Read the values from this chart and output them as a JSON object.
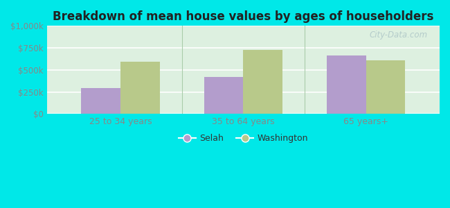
{
  "title": "Breakdown of mean house values by ages of householders",
  "categories": [
    "25 to 34 years",
    "35 to 64 years",
    "65 years+"
  ],
  "selah_values": [
    290000,
    420000,
    660000
  ],
  "washington_values": [
    590000,
    730000,
    610000
  ],
  "selah_color": "#b39dcc",
  "washington_color": "#b8c98a",
  "background_outer": "#00e8e8",
  "background_plot_top": "#e0f0e8",
  "background_plot_bottom": "#c8ead8",
  "ylim": [
    0,
    1000000
  ],
  "yticks": [
    0,
    250000,
    500000,
    750000,
    1000000
  ],
  "ytick_labels": [
    "$0",
    "$250k",
    "$500k",
    "$750k",
    "$1,000k"
  ],
  "legend_selah": "Selah",
  "legend_washington": "Washington",
  "watermark": "City-Data.com",
  "bar_width": 0.32,
  "title_color": "#222222",
  "tick_color": "#888888"
}
